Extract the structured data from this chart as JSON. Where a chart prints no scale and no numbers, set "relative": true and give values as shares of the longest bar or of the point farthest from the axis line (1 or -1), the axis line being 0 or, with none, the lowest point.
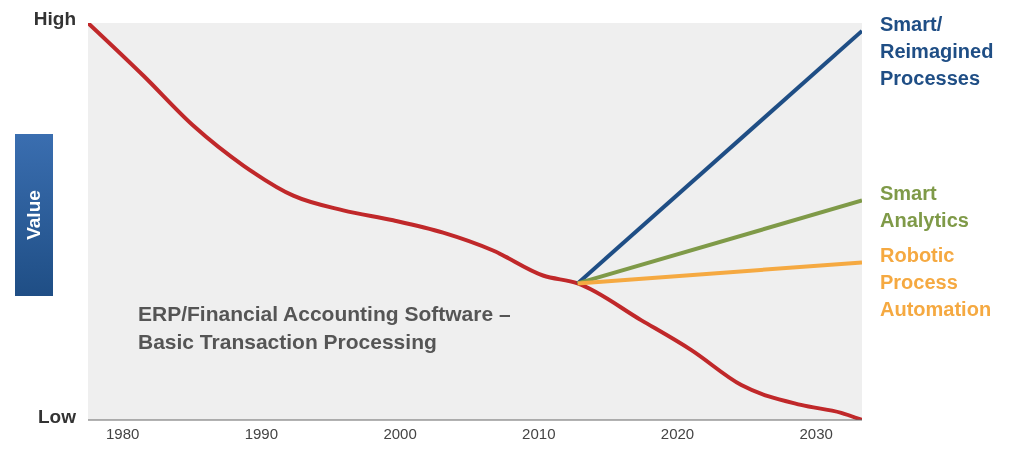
{
  "chart_data": {
    "type": "line",
    "relative": true,
    "ylabel": "Value",
    "annotations": [
      "High",
      "Low"
    ],
    "xlim": [
      1977.5,
      2033.3
    ],
    "xticks": [
      1980,
      1990,
      2000,
      2010,
      2020,
      2030
    ],
    "legend": false,
    "grid": false,
    "marker": "none",
    "line_style": "solid",
    "series": [
      {
        "name": "ERP/Financial Accounting Software – Basic Transaction Processing",
        "color": "#c0282a",
        "x": [
          1977.5,
          1981.5,
          1985.1,
          1988.7,
          1992.3,
          1995.9,
          1999.5,
          2003.1,
          2006.7,
          2010.3,
          2012.8,
          2017.4,
          2021.0,
          2024.6,
          2028.9,
          2031.8,
          2033.3
        ],
        "values": [
          1.0,
          0.867,
          0.741,
          0.641,
          0.565,
          0.528,
          0.503,
          0.472,
          0.427,
          0.364,
          0.344,
          0.251,
          0.176,
          0.088,
          0.038,
          0.018,
          0.0
        ]
      },
      {
        "name": "Smart/ Reimagined Processes",
        "color": "#1f4e85",
        "x": [
          2012.8,
          2033.3
        ],
        "values": [
          0.344,
          0.98
        ]
      },
      {
        "name": "Smart Analytics",
        "color": "#7f9a48",
        "x": [
          2012.8,
          2033.3
        ],
        "values": [
          0.344,
          0.553
        ]
      },
      {
        "name": "Robotic Process Automation",
        "color": "#f5a941",
        "x": [
          2012.8,
          2033.3
        ],
        "values": [
          0.344,
          0.397
        ]
      }
    ]
  }
}
